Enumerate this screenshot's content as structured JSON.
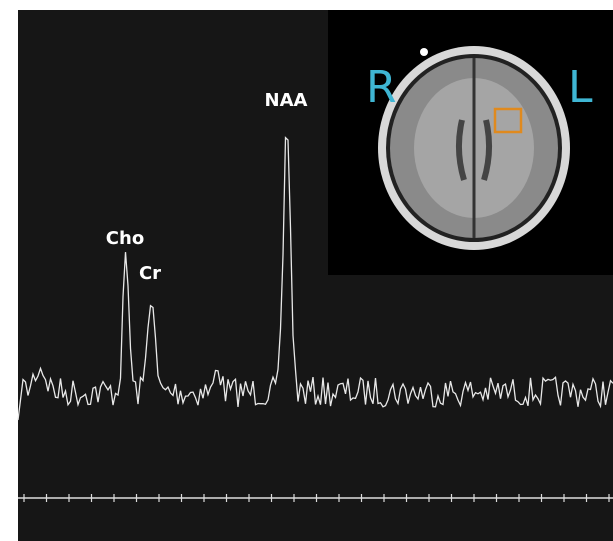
{
  "spectrum": {
    "peaks": [
      "Cho",
      "Cr",
      "NAA"
    ]
  },
  "inset": {
    "left_label": "R",
    "right_label": "L"
  }
}
